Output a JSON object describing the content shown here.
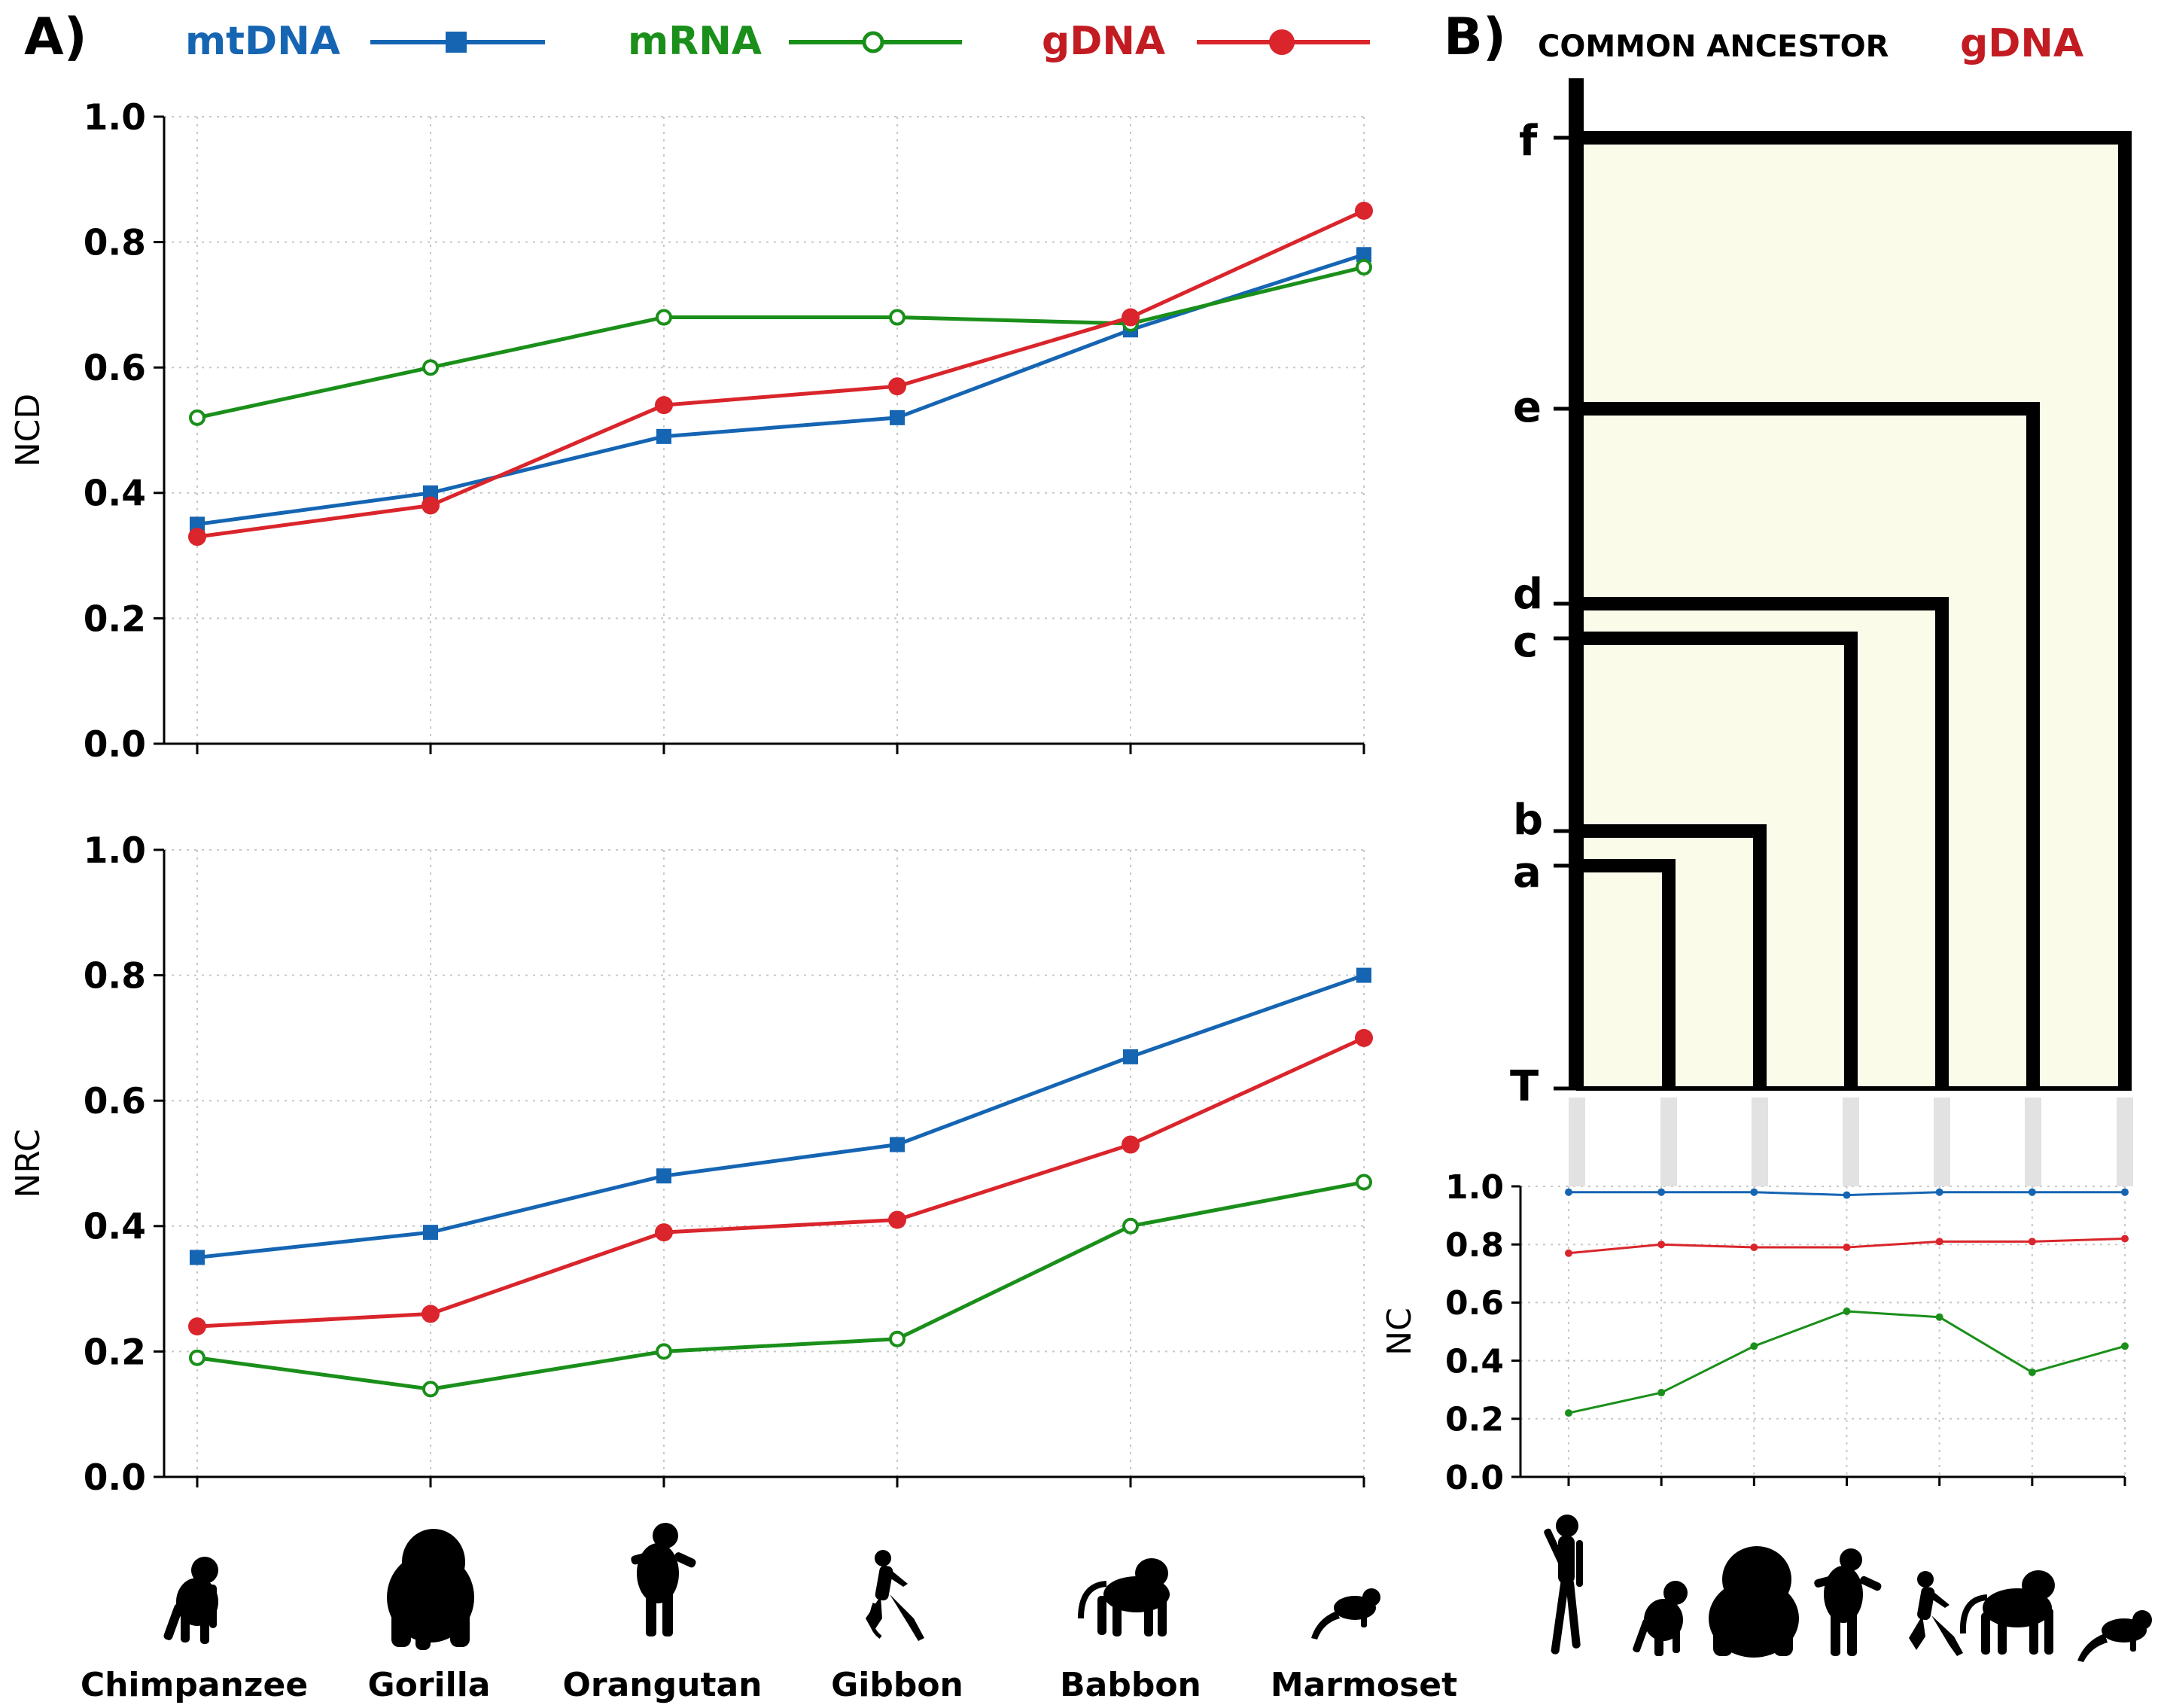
{
  "panel_a_label": "A)",
  "panel_b_label": "B)",
  "legend": [
    {
      "name": "mtDNA",
      "color": "#1565b3",
      "marker": "square"
    },
    {
      "name": "mRNA",
      "color": "#1a8f1a",
      "marker": "open-circle"
    },
    {
      "name": "gDNA",
      "color": "#d9252b",
      "marker": "circle"
    }
  ],
  "tree_title": "COMMON ANCESTOR",
  "tree_title_gdna": "gDNA",
  "tree_nodes": [
    "f",
    "e",
    "d",
    "c",
    "b",
    "a",
    "T"
  ],
  "species_labels": [
    "Chimpanzee",
    "Gorilla",
    "Orangutan",
    "Gibbon",
    "Babbon",
    "Marmoset"
  ],
  "silhouette_icons_a": [
    "chimpanzee-icon",
    "gorilla-icon",
    "orangutan-icon",
    "gibbon-icon",
    "baboon-icon",
    "marmoset-icon"
  ],
  "silhouette_icons_b": [
    "human-icon",
    "chimpanzee-icon",
    "gorilla-icon",
    "orangutan-icon",
    "gibbon-icon",
    "baboon-icon",
    "marmoset-icon"
  ],
  "chart_data": [
    {
      "type": "line",
      "ylabel": "NCD",
      "categories": [
        "Chimpanzee",
        "Gorilla",
        "Orangutan",
        "Gibbon",
        "Babbon",
        "Marmoset"
      ],
      "ylim": [
        0,
        1
      ],
      "yticks": [
        "0.0",
        "0.2",
        "0.4",
        "0.6",
        "0.8",
        "1.0"
      ],
      "grid": true,
      "series": [
        {
          "name": "mtDNA",
          "values": [
            0.35,
            0.4,
            0.49,
            0.52,
            0.66,
            0.78
          ]
        },
        {
          "name": "mRNA",
          "values": [
            0.52,
            0.6,
            0.68,
            0.68,
            0.67,
            0.76
          ]
        },
        {
          "name": "gDNA",
          "values": [
            0.33,
            0.38,
            0.54,
            0.57,
            0.68,
            0.85
          ]
        }
      ]
    },
    {
      "type": "line",
      "ylabel": "NRC",
      "categories": [
        "Chimpanzee",
        "Gorilla",
        "Orangutan",
        "Gibbon",
        "Babbon",
        "Marmoset"
      ],
      "ylim": [
        0,
        1
      ],
      "yticks": [
        "0.0",
        "0.2",
        "0.4",
        "0.6",
        "0.8",
        "1.0"
      ],
      "grid": true,
      "series": [
        {
          "name": "mtDNA",
          "values": [
            0.35,
            0.39,
            0.48,
            0.53,
            0.67,
            0.8
          ]
        },
        {
          "name": "mRNA",
          "values": [
            0.19,
            0.14,
            0.2,
            0.22,
            0.4,
            0.47
          ]
        },
        {
          "name": "gDNA",
          "values": [
            0.24,
            0.26,
            0.39,
            0.41,
            0.53,
            0.7
          ]
        }
      ]
    },
    {
      "type": "line",
      "ylabel": "NC",
      "ylim": [
        0,
        1
      ],
      "yticks": [
        "0.0",
        "0.2",
        "0.4",
        "0.6",
        "0.8",
        "1.0"
      ],
      "grid": true,
      "points": 7,
      "series": [
        {
          "name": "mtDNA",
          "values": [
            0.98,
            0.98,
            0.98,
            0.97,
            0.98,
            0.98,
            0.98
          ]
        },
        {
          "name": "gDNA",
          "values": [
            0.77,
            0.8,
            0.79,
            0.79,
            0.81,
            0.81,
            0.82
          ]
        },
        {
          "name": "mRNA",
          "values": [
            0.22,
            0.29,
            0.45,
            0.57,
            0.55,
            0.36,
            0.45
          ]
        }
      ]
    }
  ]
}
